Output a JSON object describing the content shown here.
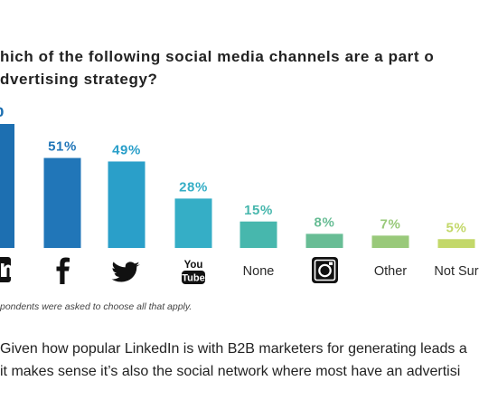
{
  "title_lines": [
    "hich of the following social media channels are a part o",
    "dvertising strategy?"
  ],
  "chart_data": {
    "type": "bar",
    "categories": [
      "LinkedIn",
      "Facebook",
      "Twitter",
      "YouTube",
      "None",
      "Instagram",
      "Other",
      "Not Sure"
    ],
    "values": [
      null,
      51,
      49,
      28,
      15,
      8,
      7,
      5
    ],
    "data_labels": [
      "%",
      "51%",
      "49%",
      "28%",
      "15%",
      "8%",
      "7%",
      "5%"
    ],
    "visible_tick_labels": [
      "",
      "",
      "",
      "",
      "None",
      "",
      "Other",
      "Not Sur"
    ],
    "icons": [
      "linkedin-icon",
      "facebook-icon",
      "twitter-icon",
      "youtube-icon",
      "",
      "instagram-icon",
      "",
      ""
    ],
    "colors": [
      "#1d6fb1",
      "#2176b8",
      "#2a9fc9",
      "#35aec6",
      "#47b7ad",
      "#68bd95",
      "#99c97a",
      "#c3d86a"
    ],
    "label_colors": [
      "#1d6fb1",
      "#2176b8",
      "#2a9fc9",
      "#35aec6",
      "#47b7ad",
      "#68bd95",
      "#99c97a",
      "#c3d86a"
    ],
    "ylim": [
      0,
      100
    ],
    "grid": false,
    "legend": "none"
  },
  "youtube_wordmark": [
    "You",
    "Tube"
  ],
  "footnote": "pondents were asked to choose all that apply.",
  "body_lines": [
    "Given how popular LinkedIn is with B2B marketers for generating leads a",
    "it makes sense it’s also the social network where most have an advertisi"
  ]
}
